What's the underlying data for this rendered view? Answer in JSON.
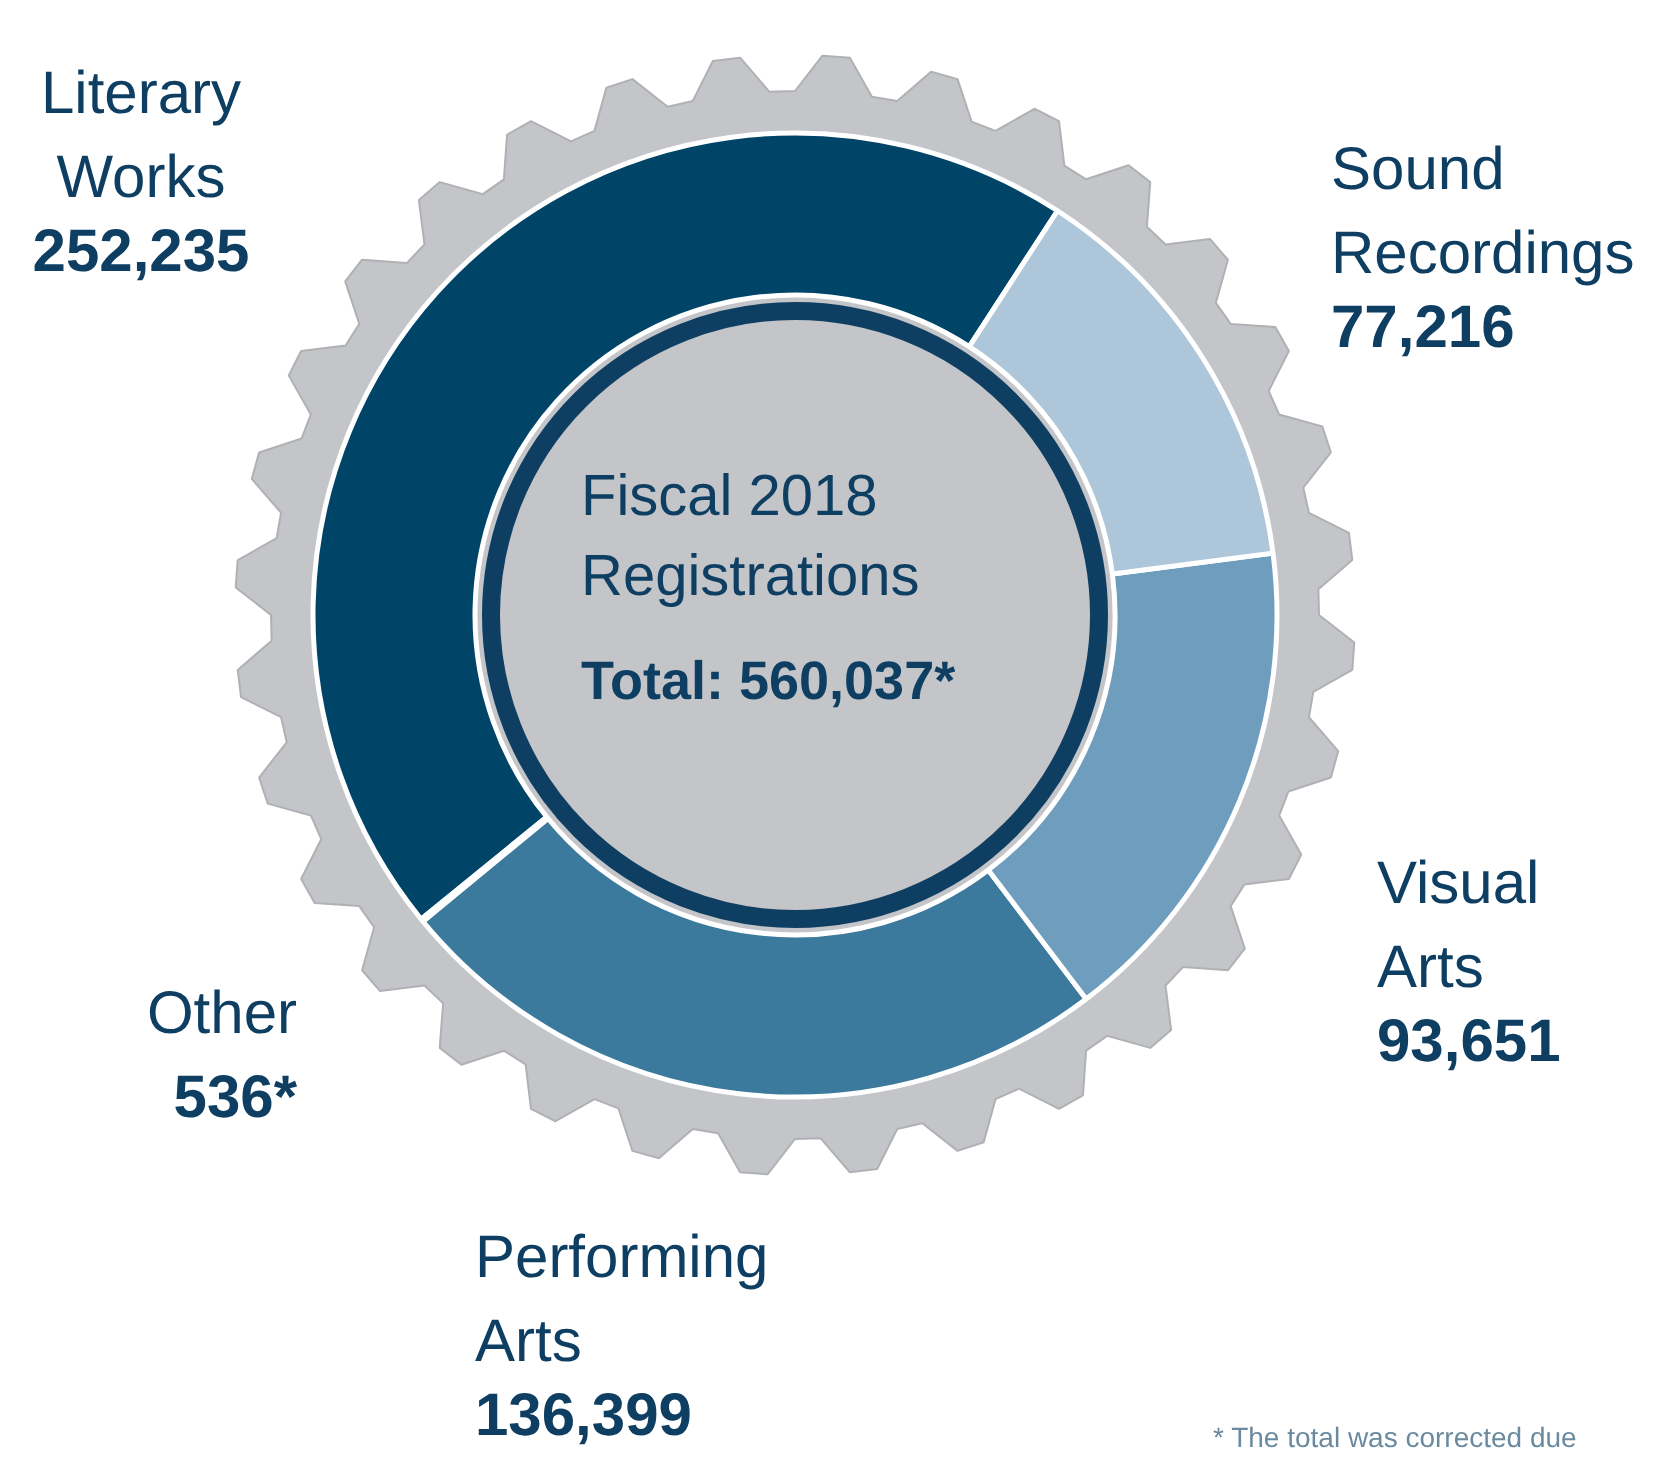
{
  "chart_data": {
    "type": "donut",
    "title": "Fiscal 2018 Registrations",
    "subtitle": "Total: 560,037*",
    "categories": [
      "Literary Works",
      "Other",
      "Performing Arts",
      "Visual Arts",
      "Sound Recordings"
    ],
    "values": [
      252235,
      536,
      136399,
      93651,
      77216
    ],
    "value_labels": [
      "252,235",
      "536*",
      "136,399",
      "93,651",
      "77,216"
    ],
    "colors": [
      "#004468",
      "#1c5e86",
      "#3b7a9c",
      "#6f9dbd",
      "#adc6da"
    ],
    "annotations": [
      "* The total was corrected due"
    ]
  }
}
